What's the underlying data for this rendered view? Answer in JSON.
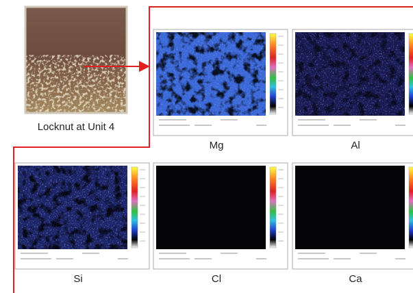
{
  "photo": {
    "caption": "Locknut at Unit 4"
  },
  "panels": [
    {
      "label": "Mg"
    },
    {
      "label": "Al"
    },
    {
      "label": "Si"
    },
    {
      "label": "Cl"
    },
    {
      "label": "Ca"
    }
  ]
}
